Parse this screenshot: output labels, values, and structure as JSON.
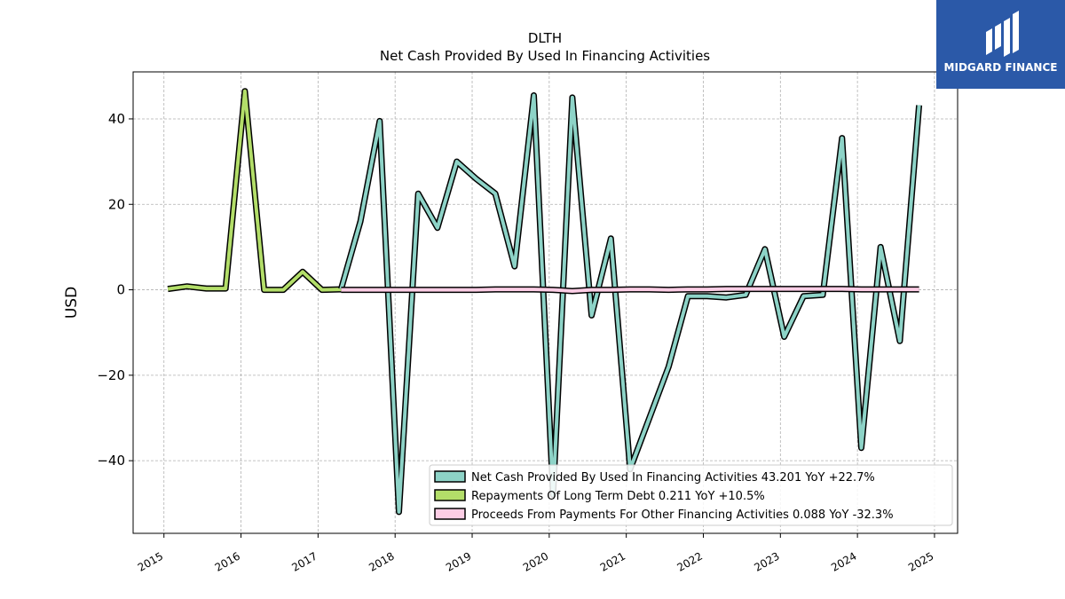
{
  "logo": {
    "text": "MIDGARD FINANCE",
    "background": "#2b59a8"
  },
  "chart_data": {
    "type": "line",
    "title": "DLTH",
    "subtitle": "Net Cash Provided By Used In Financing Activities",
    "xlabel": "",
    "ylabel": "USD",
    "xlim": [
      2014.6,
      2025.3
    ],
    "ylim": [
      -57,
      51
    ],
    "x_ticks": [
      "2015",
      "2016",
      "2017",
      "2018",
      "2019",
      "2020",
      "2021",
      "2022",
      "2023",
      "2024",
      "2025"
    ],
    "y_ticks": [
      -40,
      -20,
      0,
      20,
      40
    ],
    "y_tick_labels": [
      "−40",
      "−20",
      "0",
      "20",
      "40"
    ],
    "grid": true,
    "legend_position": "bottom-right",
    "series": [
      {
        "name": "Net Cash Provided By Used In Financing Activities",
        "legend_label": "Net Cash Provided By Used In Financing Activities  43.201 YoY +22.7%",
        "color": "#8dd3c7",
        "points": [
          [
            2017.3,
            0.2
          ],
          [
            2017.55,
            16.0
          ],
          [
            2017.8,
            39.5
          ],
          [
            2018.05,
            -52.0
          ],
          [
            2018.3,
            22.5
          ],
          [
            2018.55,
            14.5
          ],
          [
            2018.8,
            30.0
          ],
          [
            2019.05,
            26.0
          ],
          [
            2019.3,
            22.5
          ],
          [
            2019.55,
            5.5
          ],
          [
            2019.8,
            45.5
          ],
          [
            2020.05,
            -48.0
          ],
          [
            2020.3,
            45.0
          ],
          [
            2020.55,
            -6.0
          ],
          [
            2020.8,
            12.0
          ],
          [
            2021.05,
            -42.0
          ],
          [
            2021.3,
            -30.0
          ],
          [
            2021.55,
            -18.0
          ],
          [
            2021.8,
            -1.5
          ],
          [
            2022.05,
            -1.5
          ],
          [
            2022.3,
            -1.8
          ],
          [
            2022.55,
            -1.2
          ],
          [
            2022.8,
            9.5
          ],
          [
            2023.05,
            -11.0
          ],
          [
            2023.3,
            -1.5
          ],
          [
            2023.55,
            -1.2
          ],
          [
            2023.8,
            35.5
          ],
          [
            2024.05,
            -37.0
          ],
          [
            2024.3,
            10.0
          ],
          [
            2024.55,
            -12.0
          ],
          [
            2024.8,
            43.2
          ]
        ]
      },
      {
        "name": "Repayments Of Long Term Debt",
        "legend_label": "Repayments Of Long Term Debt  0.211 YoY +10.5%",
        "color": "#b3de69",
        "points": [
          [
            2015.05,
            0.2
          ],
          [
            2015.3,
            0.8
          ],
          [
            2015.55,
            0.3
          ],
          [
            2015.8,
            0.3
          ],
          [
            2016.05,
            46.5
          ],
          [
            2016.3,
            0.0
          ],
          [
            2016.55,
            0.0
          ],
          [
            2016.8,
            4.2
          ],
          [
            2017.05,
            0.0
          ],
          [
            2017.3,
            0.1
          ]
        ]
      },
      {
        "name": "Proceeds From Payments For Other Financing Activities",
        "legend_label": "Proceeds From Payments For Other Financing Activities  0.088 YoY -32.3%",
        "color": "#fccde5",
        "points": [
          [
            2017.3,
            0.0
          ],
          [
            2017.55,
            0.0
          ],
          [
            2017.8,
            0.0
          ],
          [
            2018.05,
            0.0
          ],
          [
            2018.3,
            0.0
          ],
          [
            2018.55,
            0.0
          ],
          [
            2018.8,
            0.0
          ],
          [
            2019.05,
            0.0
          ],
          [
            2019.3,
            0.1
          ],
          [
            2019.55,
            0.1
          ],
          [
            2019.8,
            0.1
          ],
          [
            2020.05,
            0.0
          ],
          [
            2020.3,
            -0.3
          ],
          [
            2020.55,
            0.0
          ],
          [
            2020.8,
            0.0
          ],
          [
            2021.05,
            0.1
          ],
          [
            2021.3,
            0.1
          ],
          [
            2021.55,
            0.0
          ],
          [
            2021.8,
            0.1
          ],
          [
            2022.05,
            0.1
          ],
          [
            2022.3,
            0.2
          ],
          [
            2022.55,
            0.2
          ],
          [
            2022.8,
            0.2
          ],
          [
            2023.05,
            0.2
          ],
          [
            2023.3,
            0.2
          ],
          [
            2023.55,
            0.2
          ],
          [
            2023.8,
            0.2
          ],
          [
            2024.05,
            0.1
          ],
          [
            2024.3,
            0.1
          ],
          [
            2024.55,
            0.1
          ],
          [
            2024.8,
            0.1
          ]
        ]
      }
    ]
  }
}
